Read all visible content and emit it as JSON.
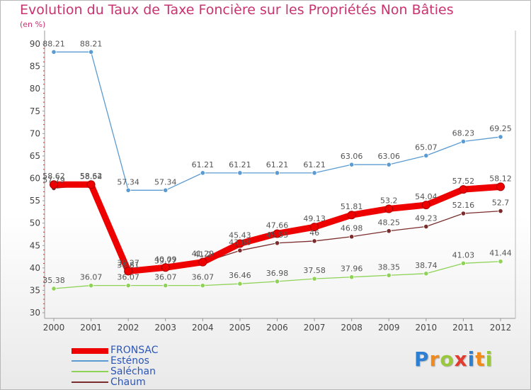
{
  "chart_data": {
    "type": "line",
    "title": "Evolution du Taux de Taxe Foncière sur les Propriétés Non Bâties",
    "ylabel": "(en %)",
    "xlabel": "",
    "ylim": [
      30,
      90
    ],
    "yticks": [
      "30",
      "35",
      "40",
      "45",
      "50",
      "55",
      "60",
      "65",
      "70",
      "75",
      "80",
      "85",
      "90"
    ],
    "x": [
      "2000",
      "2001",
      "2002",
      "2003",
      "2004",
      "2005",
      "2006",
      "2007",
      "2008",
      "2009",
      "2010",
      "2011",
      "2012"
    ],
    "grid": false,
    "legend_position": "bottom-left",
    "series": [
      {
        "name": "FRONSAC",
        "color": "#ee0000",
        "values": [
          58.62,
          58.62,
          39.27,
          40.09,
          41.29,
          45.43,
          47.66,
          49.13,
          51.81,
          53.2,
          54.04,
          57.52,
          58.12
        ],
        "labels": [
          "58.62",
          "58.62",
          "39.27",
          "40.09",
          "41.29",
          "45.43",
          "47.66",
          "49.13",
          "51.81",
          "53.2",
          "54.04",
          "57.52",
          "58.12"
        ]
      },
      {
        "name": "Esténos",
        "color": "#5b9bd1",
        "values": [
          88.21,
          88.21,
          57.34,
          57.34,
          61.21,
          61.21,
          61.21,
          61.21,
          63.06,
          63.06,
          65.07,
          68.23,
          69.25
        ],
        "labels": [
          "88.21",
          "88.21",
          "57.34",
          "57.34",
          "61.21",
          "61.21",
          "61.21",
          "61.21",
          "63.06",
          "63.06",
          "65.07",
          "68.23",
          "69.25"
        ]
      },
      {
        "name": "Saléchan",
        "color": "#8ed357",
        "values": [
          35.38,
          36.07,
          36.07,
          36.07,
          36.07,
          36.46,
          36.98,
          37.58,
          37.96,
          38.35,
          38.74,
          41.03,
          41.44
        ],
        "labels": [
          "35.38",
          "36.07",
          "36.07",
          "36.07",
          "36.07",
          "36.46",
          "36.98",
          "37.58",
          "37.96",
          "38.35",
          "38.74",
          "41.03",
          "41.44"
        ]
      },
      {
        "name": "Chaum",
        "color": "#7b2c2c",
        "values": [
          57.79,
          58.54,
          38.81,
          39.77,
          41.2,
          43.88,
          45.55,
          46,
          46.98,
          48.25,
          49.23,
          52.16,
          52.7
        ],
        "labels": [
          "57.79",
          "58.54",
          "38.81",
          "39.77",
          "41.2",
          "43.88",
          "45.55",
          "46",
          "46.98",
          "48.25",
          "49.23",
          "52.16",
          "52.7"
        ]
      }
    ]
  },
  "legend": {
    "items": [
      "FRONSAC",
      "Esténos",
      "Saléchan",
      "Chaum"
    ]
  },
  "logo": {
    "letters": [
      "P",
      "r",
      "o",
      "x",
      "i",
      "t",
      "i"
    ],
    "colors": [
      "#2d7fd3",
      "#f08a1c",
      "#9ac83d",
      "#e33b2e",
      "#2d7fd3",
      "#f08a1c",
      "#9ac83d"
    ]
  }
}
